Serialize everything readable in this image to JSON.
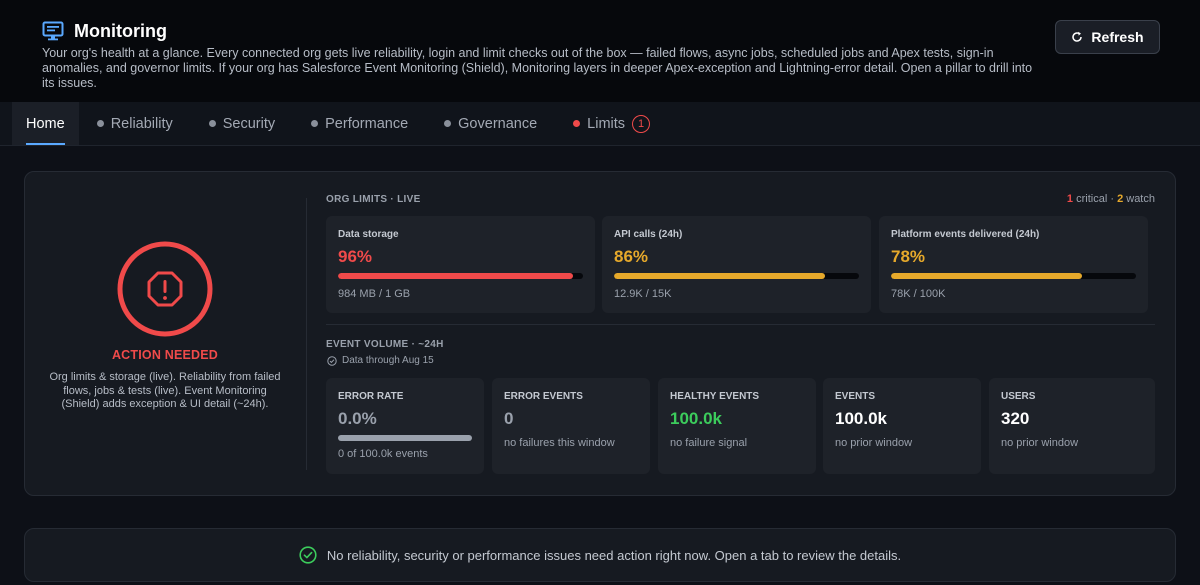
{
  "header": {
    "title": "Monitoring",
    "icon": "monitor-icon",
    "subtitle": "Your org's health at a glance. Every connected org gets live reliability, login and limit checks out of the box — failed flows, async jobs, scheduled jobs and Apex tests, sign-in anomalies, and governor limits. If your org has Salesforce Event Monitoring (Shield), Monitoring layers in deeper Apex-exception and Lightning-error detail. Open a pillar to drill into its issues.",
    "refresh_label": "Refresh"
  },
  "tabs": [
    {
      "label": "Home",
      "active": true
    },
    {
      "label": "Reliability",
      "dot": "gray"
    },
    {
      "label": "Security",
      "dot": "gray"
    },
    {
      "label": "Performance",
      "dot": "gray"
    },
    {
      "label": "Governance",
      "dot": "gray"
    },
    {
      "label": "Limits",
      "dot": "red",
      "count": "1"
    }
  ],
  "status": {
    "label": "ACTION NEEDED",
    "description": "Org limits & storage (live). Reliability from failed flows, jobs & tests (live). Event Monitoring (Shield) adds exception & UI detail (~24h).",
    "color": "#f04a4a"
  },
  "org_limits": {
    "title": "ORG LIMITS · LIVE",
    "critical_count": "1",
    "critical_label": "critical",
    "separator": "·",
    "watch_count": "2",
    "watch_label": "watch",
    "cards": [
      {
        "name": "Data storage",
        "percent": "96%",
        "fraction": 0.96,
        "detail": "984 MB / 1 GB",
        "color": "#f04a4a"
      },
      {
        "name": "API calls (24h)",
        "percent": "86%",
        "fraction": 0.86,
        "detail": "12.9K / 15K",
        "color": "#e6a92b"
      },
      {
        "name": "Platform events delivered (24h)",
        "percent": "78%",
        "fraction": 0.78,
        "detail": "78K / 100K",
        "color": "#e6a92b"
      }
    ]
  },
  "event_volume": {
    "title": "EVENT VOLUME · ~24H",
    "data_through": "Data through Aug 15",
    "cards": [
      {
        "name": "ERROR RATE",
        "value": "0.0%",
        "detail": "0 of 100.0k events",
        "style": "muted",
        "bar_fraction": 1.0
      },
      {
        "name": "ERROR EVENTS",
        "value": "0",
        "detail": "no failures this window",
        "style": "muted"
      },
      {
        "name": "HEALTHY EVENTS",
        "value": "100.0k",
        "detail": "no failure signal",
        "style": "green"
      },
      {
        "name": "EVENTS",
        "value": "100.0k",
        "detail": "no prior window",
        "style": "normal"
      },
      {
        "name": "USERS",
        "value": "320",
        "detail": "no prior window",
        "style": "normal"
      }
    ]
  },
  "banner": {
    "text": "No reliability, security or performance issues need action right now. Open a tab to review the details.",
    "icon": "check-circle-icon"
  }
}
